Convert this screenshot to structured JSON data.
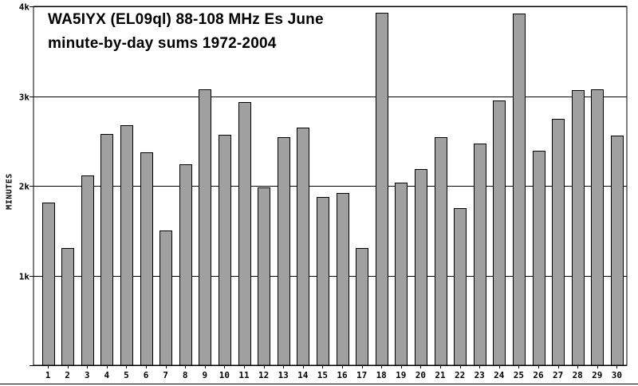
{
  "chart_data": {
    "type": "bar",
    "title": "WA5IYX (EL09ql) 88-108 MHz Es June",
    "subtitle": "minute-by-day sums 1972-2004",
    "xlabel": "",
    "ylabel": "MINUTES",
    "ylim": [
      0,
      4000
    ],
    "yticks": [
      1000,
      2000,
      3000,
      4000
    ],
    "ytick_labels": [
      "1k",
      "2k",
      "3k",
      "4k"
    ],
    "grid": true,
    "legend": "none",
    "colors": {
      "bar_fill": "#a0a0a0",
      "bar_stroke": "#000000",
      "grid": "#000000",
      "background": "#ffffff"
    },
    "categories": [
      "1",
      "2",
      "3",
      "4",
      "5",
      "6",
      "7",
      "8",
      "9",
      "10",
      "11",
      "12",
      "13",
      "14",
      "15",
      "16",
      "17",
      "18",
      "19",
      "20",
      "21",
      "22",
      "23",
      "24",
      "25",
      "26",
      "27",
      "28",
      "29",
      "30"
    ],
    "values": [
      1810,
      1310,
      2120,
      2580,
      2680,
      2370,
      1500,
      2240,
      3080,
      2570,
      2930,
      1980,
      2540,
      2650,
      1880,
      1920,
      1310,
      3930,
      2040,
      2190,
      2540,
      1750,
      2470,
      2950,
      3920,
      2390,
      2750,
      3070,
      3080,
      2560
    ]
  }
}
